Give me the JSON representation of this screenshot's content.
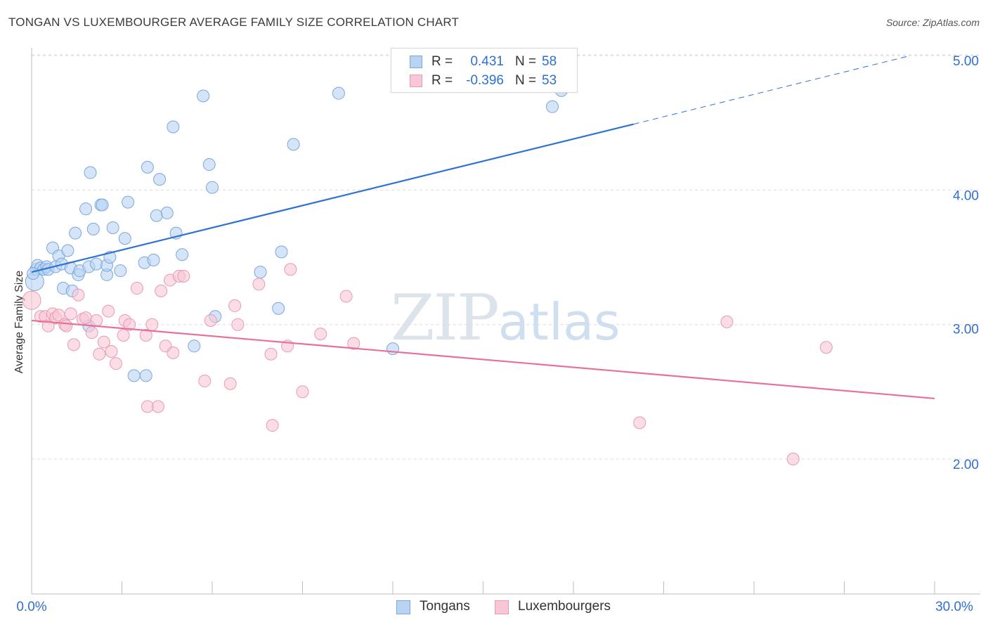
{
  "title": "TONGAN VS LUXEMBOURGER AVERAGE FAMILY SIZE CORRELATION CHART",
  "source": "Source: ZipAtlas.com",
  "watermark": {
    "zip": "ZIP",
    "atlas": "atlas"
  },
  "colors": {
    "tongans_fill": "#b9d3f2",
    "tongans_stroke": "#7aa7dd",
    "tongans_line": "#2f72d4",
    "lux_fill": "#f8c7d6",
    "lux_stroke": "#e99ab3",
    "lux_line": "#e8709b",
    "value_text": "#2f6fd0",
    "grid": "#dcdcdc"
  },
  "legend_top": {
    "rows": [
      {
        "r_label": "R =",
        "r_value": "0.431",
        "n_label": "N =",
        "n_value": "58"
      },
      {
        "r_label": "R =",
        "r_value": "-0.396",
        "n_label": "N =",
        "n_value": "53"
      }
    ]
  },
  "legend_bottom": {
    "items": [
      {
        "label": "Tongans"
      },
      {
        "label": "Luxembourgers"
      }
    ]
  },
  "chart_data": {
    "type": "scatter",
    "title": "TONGAN VS LUXEMBOURGER AVERAGE FAMILY SIZE CORRELATION CHART",
    "xlabel": "",
    "ylabel": "Average Family Size",
    "xlim": [
      0,
      30
    ],
    "ylim": [
      1.0,
      5.1
    ],
    "x_tick_labels": [
      "0.0%",
      "30.0%"
    ],
    "y_ticks": [
      2.0,
      3.0,
      4.0,
      5.0
    ],
    "y_tick_labels": [
      "2.00",
      "3.00",
      "4.00",
      "5.00"
    ],
    "grid": true,
    "legend_position": "top-center",
    "series": [
      {
        "name": "Tongans",
        "points": [
          [
            0.1,
            3.32
          ],
          [
            0.15,
            3.41
          ],
          [
            0.2,
            3.44
          ],
          [
            0.3,
            3.42
          ],
          [
            0.4,
            3.41
          ],
          [
            0.5,
            3.43
          ],
          [
            0.55,
            3.41
          ],
          [
            0.7,
            3.57
          ],
          [
            0.8,
            3.43
          ],
          [
            0.9,
            3.51
          ],
          [
            1.0,
            3.45
          ],
          [
            1.05,
            3.27
          ],
          [
            1.2,
            3.55
          ],
          [
            1.3,
            3.42
          ],
          [
            1.35,
            3.25
          ],
          [
            1.45,
            3.68
          ],
          [
            1.55,
            3.37
          ],
          [
            1.6,
            3.4
          ],
          [
            1.8,
            3.86
          ],
          [
            1.9,
            3.43
          ],
          [
            1.9,
            2.99
          ],
          [
            1.95,
            4.13
          ],
          [
            2.05,
            3.71
          ],
          [
            2.15,
            3.45
          ],
          [
            2.3,
            3.89
          ],
          [
            2.35,
            3.89
          ],
          [
            2.5,
            3.37
          ],
          [
            2.5,
            3.44
          ],
          [
            2.6,
            3.5
          ],
          [
            2.7,
            3.72
          ],
          [
            2.95,
            3.4
          ],
          [
            3.1,
            3.64
          ],
          [
            3.2,
            3.91
          ],
          [
            3.4,
            2.62
          ],
          [
            3.75,
            3.46
          ],
          [
            3.8,
            2.62
          ],
          [
            3.85,
            4.17
          ],
          [
            4.05,
            3.48
          ],
          [
            4.15,
            3.81
          ],
          [
            4.25,
            4.08
          ],
          [
            4.5,
            3.83
          ],
          [
            4.7,
            4.47
          ],
          [
            4.8,
            3.68
          ],
          [
            5.0,
            3.52
          ],
          [
            5.4,
            2.84
          ],
          [
            5.7,
            4.7
          ],
          [
            5.9,
            4.19
          ],
          [
            6.0,
            4.02
          ],
          [
            6.1,
            3.06
          ],
          [
            7.6,
            3.39
          ],
          [
            8.2,
            3.12
          ],
          [
            8.3,
            3.54
          ],
          [
            8.7,
            4.34
          ],
          [
            10.2,
            4.72
          ],
          [
            12.0,
            2.82
          ],
          [
            17.3,
            4.62
          ],
          [
            17.6,
            4.74
          ],
          [
            0.05,
            3.38
          ]
        ]
      },
      {
        "name": "Luxembourgers",
        "points": [
          [
            0.0,
            3.18
          ],
          [
            0.3,
            3.06
          ],
          [
            0.45,
            3.06
          ],
          [
            0.55,
            2.99
          ],
          [
            0.7,
            3.08
          ],
          [
            0.8,
            3.05
          ],
          [
            0.9,
            3.07
          ],
          [
            1.1,
            3.0
          ],
          [
            1.15,
            2.99
          ],
          [
            1.3,
            3.08
          ],
          [
            1.4,
            2.85
          ],
          [
            1.55,
            3.22
          ],
          [
            1.7,
            3.04
          ],
          [
            1.8,
            3.05
          ],
          [
            2.0,
            2.94
          ],
          [
            2.15,
            3.03
          ],
          [
            2.25,
            2.78
          ],
          [
            2.4,
            2.87
          ],
          [
            2.55,
            3.1
          ],
          [
            2.65,
            2.8
          ],
          [
            2.8,
            2.71
          ],
          [
            3.05,
            2.92
          ],
          [
            3.1,
            3.03
          ],
          [
            3.25,
            3.0
          ],
          [
            3.5,
            3.27
          ],
          [
            3.8,
            2.92
          ],
          [
            3.85,
            2.39
          ],
          [
            4.0,
            3.0
          ],
          [
            4.2,
            2.39
          ],
          [
            4.3,
            3.25
          ],
          [
            4.45,
            2.84
          ],
          [
            4.6,
            3.33
          ],
          [
            4.7,
            2.79
          ],
          [
            4.9,
            3.36
          ],
          [
            5.05,
            3.36
          ],
          [
            5.75,
            2.58
          ],
          [
            5.95,
            3.03
          ],
          [
            6.6,
            2.56
          ],
          [
            6.75,
            3.14
          ],
          [
            6.85,
            3.0
          ],
          [
            7.55,
            3.3
          ],
          [
            7.95,
            2.78
          ],
          [
            8.0,
            2.25
          ],
          [
            8.5,
            2.84
          ],
          [
            8.6,
            3.41
          ],
          [
            9.0,
            2.5
          ],
          [
            9.6,
            2.93
          ],
          [
            10.45,
            3.21
          ],
          [
            10.7,
            2.86
          ],
          [
            20.2,
            2.27
          ],
          [
            23.1,
            3.02
          ],
          [
            25.3,
            2.0
          ],
          [
            26.4,
            2.83
          ]
        ]
      }
    ],
    "trendlines": [
      {
        "series": "Tongans",
        "x0": 0.0,
        "y0": 3.39,
        "x1": 20.0,
        "y1": 4.49,
        "dashed_to_x": 29.2,
        "dashed_to_y": 5.0
      },
      {
        "series": "Luxembourgers",
        "x0": 0.0,
        "y0": 3.03,
        "x1": 30.0,
        "y1": 2.45
      }
    ]
  }
}
